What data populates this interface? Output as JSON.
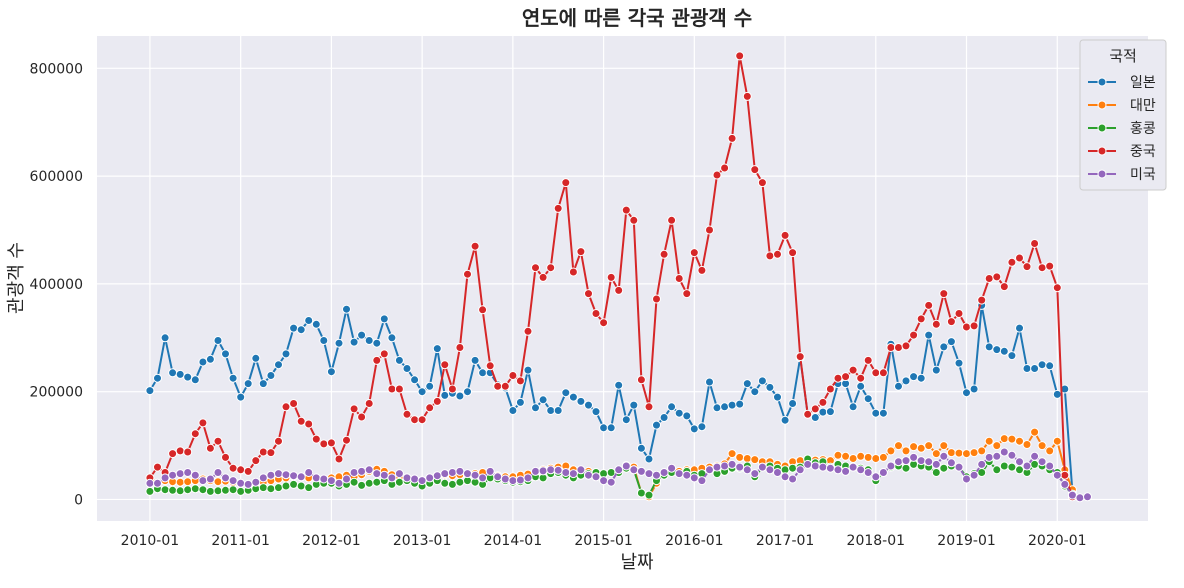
{
  "chart_data": {
    "type": "line",
    "title": "연도에 따른 각국 관광객 수",
    "xlabel": "날짜",
    "ylabel": "관광객 수",
    "legend_title": "국적",
    "legend_position": "top-right",
    "grid": true,
    "ylim": [
      -40000,
      860000
    ],
    "xlim": [
      "2009-06",
      "2021-01"
    ],
    "yticks": [
      0,
      200000,
      400000,
      600000,
      800000
    ],
    "ytick_labels": [
      "0",
      "200000",
      "400000",
      "600000",
      "800000"
    ],
    "xticks": [
      "2010-01",
      "2011-01",
      "2012-01",
      "2013-01",
      "2014-01",
      "2015-01",
      "2016-01",
      "2017-01",
      "2018-01",
      "2019-01",
      "2020-01"
    ],
    "x_start": "2010-01",
    "x_step": "1 month",
    "series": [
      {
        "name": "일본",
        "color": "#1f77b4",
        "values": [
          202000,
          225000,
          300000,
          235000,
          232000,
          227000,
          222000,
          255000,
          260000,
          295000,
          270000,
          225000,
          190000,
          215000,
          262000,
          215000,
          230000,
          250000,
          270000,
          318000,
          315000,
          332000,
          325000,
          295000,
          237000,
          290000,
          353000,
          292000,
          305000,
          295000,
          290000,
          335000,
          300000,
          258000,
          243000,
          222000,
          200000,
          210000,
          280000,
          193000,
          197000,
          192000,
          200000,
          258000,
          235000,
          235000,
          213000,
          207000,
          165000,
          180000,
          240000,
          170000,
          185000,
          165000,
          165000,
          198000,
          190000,
          182000,
          175000,
          163000,
          133000,
          133000,
          212000,
          148000,
          175000,
          95000,
          75000,
          138000,
          152000,
          172000,
          160000,
          155000,
          131000,
          135000,
          218000,
          170000,
          172000,
          175000,
          177000,
          215000,
          200000,
          220000,
          208000,
          190000,
          147000,
          178000,
          263000,
          158000,
          152000,
          162000,
          163000,
          215000,
          215000,
          172000,
          210000,
          187000,
          160000,
          160000,
          288000,
          210000,
          220000,
          228000,
          225000,
          305000,
          240000,
          283000,
          293000,
          253000,
          198000,
          205000,
          360000,
          283000,
          278000,
          275000,
          267000,
          318000,
          243000,
          243000,
          250000,
          248000,
          195000,
          205000,
          15000
        ]
      },
      {
        "name": "대만",
        "color": "#ff7f0e",
        "values": [
          40000,
          30000,
          35000,
          33000,
          32000,
          33000,
          35000,
          38000,
          35000,
          33000,
          34000,
          32000,
          30000,
          28000,
          30000,
          32000,
          35000,
          38000,
          40000,
          43000,
          42000,
          40000,
          38000,
          35000,
          40000,
          42000,
          45000,
          42000,
          46000,
          52000,
          56000,
          52000,
          46000,
          42000,
          40000,
          38000,
          35000,
          40000,
          44000,
          46000,
          44000,
          46000,
          45000,
          48000,
          50000,
          46000,
          44000,
          42000,
          42000,
          45000,
          47000,
          48000,
          55000,
          58000,
          60000,
          62000,
          55000,
          54000,
          52000,
          50000,
          48000,
          50000,
          50000,
          63000,
          60000,
          12000,
          5000,
          30000,
          50000,
          56000,
          52000,
          55000,
          55000,
          58000,
          60000,
          62000,
          66000,
          85000,
          78000,
          76000,
          74000,
          70000,
          70000,
          65000,
          62000,
          70000,
          72000,
          75000,
          73000,
          74000,
          72000,
          82000,
          80000,
          76000,
          80000,
          78000,
          76000,
          78000,
          90000,
          100000,
          90000,
          98000,
          95000,
          100000,
          85000,
          100000,
          87000,
          86000,
          85000,
          87000,
          90000,
          108000,
          100000,
          113000,
          112000,
          108000,
          102000,
          125000,
          100000,
          90000,
          108000,
          55000,
          18000
        ]
      },
      {
        "name": "홍콩",
        "color": "#2ca02c",
        "values": [
          15000,
          20000,
          18000,
          17000,
          16000,
          18000,
          20000,
          18000,
          15000,
          16000,
          17000,
          18000,
          15000,
          17000,
          20000,
          22000,
          20000,
          22000,
          25000,
          28000,
          25000,
          22000,
          28000,
          30000,
          30000,
          25000,
          28000,
          32000,
          26000,
          30000,
          32000,
          35000,
          28000,
          32000,
          35000,
          30000,
          25000,
          30000,
          35000,
          30000,
          28000,
          32000,
          35000,
          32000,
          28000,
          40000,
          38000,
          35000,
          32000,
          33000,
          35000,
          42000,
          40000,
          48000,
          50000,
          45000,
          40000,
          45000,
          48000,
          50000,
          48000,
          50000,
          50000,
          58000,
          55000,
          12000,
          8000,
          35000,
          45000,
          50000,
          48000,
          52000,
          45000,
          48000,
          55000,
          48000,
          52000,
          58000,
          58000,
          62000,
          42000,
          60000,
          62000,
          58000,
          55000,
          58000,
          60000,
          75000,
          68000,
          70000,
          60000,
          65000,
          62000,
          60000,
          58000,
          55000,
          35000,
          50000,
          60000,
          62000,
          58000,
          65000,
          62000,
          60000,
          50000,
          58000,
          62000,
          60000,
          42000,
          48000,
          50000,
          70000,
          55000,
          62000,
          60000,
          55000,
          50000,
          65000,
          62000,
          55000,
          50000,
          25000,
          10000
        ]
      },
      {
        "name": "중국",
        "color": "#d62728",
        "values": [
          40000,
          60000,
          50000,
          85000,
          90000,
          88000,
          122000,
          142000,
          95000,
          108000,
          78000,
          58000,
          55000,
          52000,
          72000,
          88000,
          87000,
          108000,
          172000,
          178000,
          145000,
          140000,
          112000,
          103000,
          105000,
          75000,
          110000,
          168000,
          153000,
          178000,
          258000,
          270000,
          205000,
          205000,
          158000,
          148000,
          148000,
          170000,
          182000,
          250000,
          205000,
          282000,
          418000,
          470000,
          352000,
          248000,
          210000,
          210000,
          230000,
          220000,
          312000,
          430000,
          412000,
          430000,
          540000,
          588000,
          422000,
          460000,
          382000,
          345000,
          328000,
          412000,
          388000,
          537000,
          518000,
          222000,
          172000,
          372000,
          455000,
          518000,
          410000,
          382000,
          458000,
          425000,
          500000,
          602000,
          615000,
          670000,
          823000,
          748000,
          612000,
          588000,
          452000,
          455000,
          490000,
          458000,
          265000,
          158000,
          168000,
          180000,
          205000,
          225000,
          228000,
          240000,
          225000,
          258000,
          235000,
          235000,
          282000,
          282000,
          285000,
          305000,
          335000,
          360000,
          325000,
          382000,
          330000,
          345000,
          320000,
          322000,
          370000,
          410000,
          413000,
          395000,
          440000,
          448000,
          432000,
          475000,
          430000,
          433000,
          393000,
          45000,
          5000
        ]
      },
      {
        "name": "미국",
        "color": "#9467bd",
        "values": [
          30000,
          30000,
          40000,
          45000,
          48000,
          50000,
          45000,
          35000,
          38000,
          50000,
          40000,
          35000,
          30000,
          28000,
          32000,
          40000,
          45000,
          48000,
          46000,
          44000,
          42000,
          50000,
          40000,
          38000,
          35000,
          30000,
          38000,
          50000,
          52000,
          55000,
          48000,
          45000,
          40000,
          48000,
          40000,
          38000,
          35000,
          40000,
          44000,
          48000,
          50000,
          52000,
          48000,
          45000,
          40000,
          52000,
          42000,
          38000,
          35000,
          36000,
          40000,
          52000,
          53000,
          55000,
          54000,
          50000,
          48000,
          55000,
          45000,
          42000,
          35000,
          32000,
          55000,
          62000,
          55000,
          52000,
          48000,
          45000,
          50000,
          58000,
          48000,
          45000,
          40000,
          35000,
          55000,
          60000,
          62000,
          65000,
          60000,
          55000,
          48000,
          60000,
          55000,
          50000,
          42000,
          38000,
          55000,
          65000,
          62000,
          60000,
          58000,
          55000,
          52000,
          60000,
          55000,
          50000,
          42000,
          50000,
          62000,
          70000,
          72000,
          78000,
          72000,
          70000,
          65000,
          80000,
          68000,
          60000,
          38000,
          45000,
          65000,
          78000,
          80000,
          88000,
          82000,
          70000,
          62000,
          80000,
          70000,
          62000,
          45000,
          28000,
          8000,
          3000,
          5000
        ]
      }
    ]
  }
}
